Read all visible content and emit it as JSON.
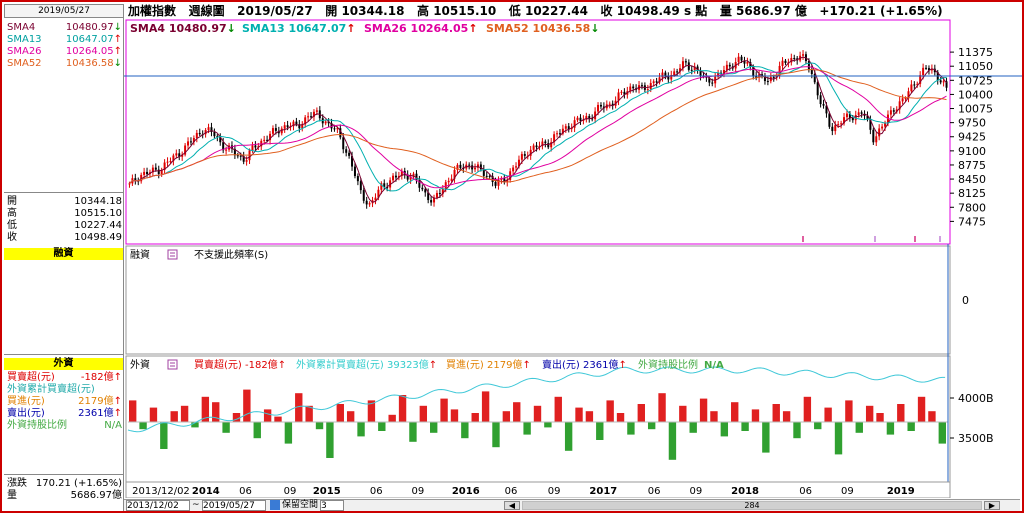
{
  "top": {
    "date_box": "2019/05/27",
    "title": "加權指數",
    "period": "週線圖",
    "date": "2019/05/27",
    "open_label": "開",
    "open": "10344.18",
    "high_label": "高",
    "high": "10515.10",
    "low_label": "低",
    "low": "10227.44",
    "close_label": "收",
    "close": "10498.49",
    "unit": "s 點",
    "vol_label": "量",
    "vol": "5686.97 億",
    "change": "+170.21 (+1.65%)"
  },
  "legend_main": [
    {
      "name": "SMA4",
      "value": "10480.97",
      "dir": "↓",
      "color": "#7a0030"
    },
    {
      "name": "SMA13",
      "value": "10647.07",
      "dir": "↑",
      "color": "#00a0a0"
    },
    {
      "name": "SMA26",
      "value": "10264.05",
      "dir": "↑",
      "color": "#e000a0"
    },
    {
      "name": "SMA52",
      "value": "10436.58",
      "dir": "↓",
      "color": "#e06020"
    }
  ],
  "left": {
    "sma": [
      {
        "name": "SMA4",
        "value": "10480.97",
        "dir": "↓",
        "color": "#7a0030"
      },
      {
        "name": "SMA13",
        "value": "10647.07",
        "dir": "↑",
        "color": "#00a0a0"
      },
      {
        "name": "SMA26",
        "value": "10264.05",
        "dir": "↑",
        "color": "#e000a0"
      },
      {
        "name": "SMA52",
        "value": "10436.58",
        "dir": "↓",
        "color": "#e06020"
      }
    ],
    "ohlc": [
      {
        "label": "開",
        "value": "10344.18"
      },
      {
        "label": "高",
        "value": "10515.10"
      },
      {
        "label": "低",
        "value": "10227.44"
      },
      {
        "label": "收",
        "value": "10498.49"
      }
    ],
    "margin_header": "融資",
    "foreign_header": "外資",
    "foreign_rows": [
      {
        "label": "買賣超(元)",
        "value": "-182億",
        "dir": "↑",
        "color": "#d00"
      },
      {
        "label": "外資累計買賣超(元)",
        "value": "",
        "dir": "",
        "color": "#2aa"
      },
      {
        "label": "買進(元)",
        "value": "2179億",
        "dir": "↑",
        "color": "#e08000"
      },
      {
        "label": "賣出(元)",
        "value": "2361億",
        "dir": "↑",
        "color": "#00a"
      },
      {
        "label": "外資持股比例",
        "value": "N/A",
        "dir": "",
        "color": "#4a4"
      }
    ],
    "change_label": "漲跌",
    "change_value": "170.21 (+1.65%)",
    "vol_label": "量",
    "vol_value": "5686.97億"
  },
  "margin_panel": {
    "title": "融資",
    "note": "不支援此頻率(S)",
    "axis_zero": "0"
  },
  "foreign_panel": {
    "title": "外資",
    "items": [
      {
        "text": "買賣超(元) -182億",
        "dir": "↑",
        "color": "#d00"
      },
      {
        "text": "外資累計買賣超(元) 39323億",
        "dir": "↑",
        "color": "#3cc"
      },
      {
        "text": "買進(元) 2179億",
        "dir": "↑",
        "color": "#e08000"
      },
      {
        "text": "賣出(元) 2361億",
        "dir": "↑",
        "color": "#00a"
      },
      {
        "text": "外資持股比例",
        "dir": "",
        "color": "#4a4"
      },
      {
        "text": "N/A",
        "dir": "",
        "color": "#4a4"
      }
    ]
  },
  "bottom": {
    "start": "2013/12/02",
    "end": "2019/05/27",
    "sep": "~",
    "space": "保留空間",
    "space_val": "3",
    "scroll_val": "284"
  },
  "chart_data": [
    {
      "type": "candlestick",
      "title": "加權指數 週線圖",
      "ylim": [
        7000,
        11700
      ],
      "y_ticks": [
        11375,
        11050,
        10725,
        10400,
        10075,
        9750,
        9425,
        9100,
        8775,
        8450,
        8125,
        7800,
        7475
      ],
      "x_ticks": [
        "2013/12/02",
        "2014",
        "06",
        "09",
        "2015",
        "06",
        "09",
        "2016",
        "06",
        "09",
        "2017",
        "06",
        "09",
        "2018",
        "06",
        "09",
        "2019"
      ],
      "series_path": [
        8300,
        8550,
        8600,
        8700,
        8900,
        9100,
        9350,
        9600,
        9500,
        9200,
        9050,
        8900,
        9200,
        9400,
        9550,
        9700,
        9650,
        9900,
        9950,
        9700,
        9500,
        8900,
        8200,
        7800,
        8300,
        8400,
        8600,
        8500,
        8200,
        7900,
        8300,
        8600,
        8800,
        8700,
        8600,
        8300,
        8500,
        8800,
        9100,
        9200,
        9300,
        9500,
        9700,
        9800,
        9900,
        10100,
        10200,
        10400,
        10600,
        10500,
        10700,
        10800,
        10900,
        11100,
        11000,
        10700,
        10800,
        11000,
        11200,
        11100,
        10800,
        10700,
        11000,
        11200,
        11300,
        11000,
        10200,
        9600,
        9800,
        9900,
        10000,
        9400,
        9700,
        10100,
        10300,
        10700,
        11000,
        10900,
        10500
      ],
      "ylabel": ""
    },
    {
      "type": "bar",
      "title": "外資",
      "y_ticks": [
        "4000B",
        "3500B"
      ],
      "values": [
        120,
        -40,
        80,
        -150,
        60,
        90,
        -30,
        140,
        110,
        -60,
        50,
        180,
        -90,
        70,
        30,
        -120,
        160,
        90,
        -40,
        -200,
        100,
        60,
        -80,
        120,
        -50,
        40,
        150,
        -110,
        90,
        -60,
        130,
        70,
        -90,
        50,
        170,
        -140,
        60,
        110,
        -70,
        90,
        -30,
        140,
        -160,
        80,
        60,
        -100,
        120,
        50,
        -70,
        100,
        -40,
        160,
        -210,
        90,
        -60,
        130,
        60,
        -80,
        110,
        -50,
        70,
        -170,
        100,
        60,
        -90,
        140,
        -40,
        80,
        -180,
        120,
        -60,
        90,
        50,
        -70,
        100,
        -50,
        140,
        60,
        -120
      ]
    }
  ]
}
